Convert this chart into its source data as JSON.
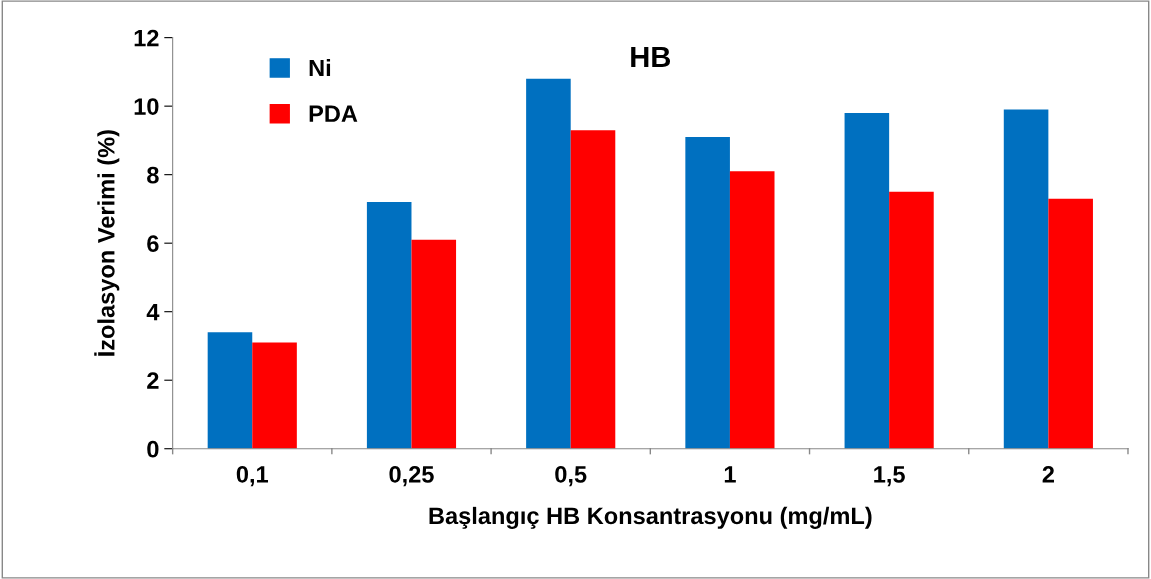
{
  "chart_data": {
    "type": "bar",
    "title": "HB",
    "xlabel": "Başlangıç HB Konsantrasyonu (mg/mL)",
    "ylabel": "İzolasyon Verimi (%)",
    "categories": [
      "0,1",
      "0,25",
      "0,5",
      "1",
      "1,5",
      "2"
    ],
    "series": [
      {
        "name": "Ni",
        "color": "#0070c0",
        "values": [
          3.4,
          7.2,
          10.8,
          9.1,
          9.8,
          9.9
        ]
      },
      {
        "name": "PDA",
        "color": "#ff0000",
        "values": [
          3.1,
          6.1,
          9.3,
          8.1,
          7.5,
          7.3
        ]
      }
    ],
    "ylim": [
      0,
      12
    ],
    "yticks": [
      0,
      2,
      4,
      6,
      8,
      10,
      12
    ],
    "grid": false,
    "legend": "top left"
  }
}
